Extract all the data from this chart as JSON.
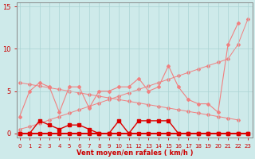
{
  "x": [
    0,
    1,
    2,
    3,
    4,
    5,
    6,
    7,
    8,
    9,
    10,
    11,
    12,
    13,
    14,
    15,
    16,
    17,
    18,
    19,
    20,
    21,
    22,
    23
  ],
  "series": {
    "diagonal_up": [
      0.5,
      0.8,
      1.2,
      1.6,
      2.0,
      2.4,
      2.8,
      3.2,
      3.6,
      4.0,
      4.4,
      4.8,
      5.2,
      5.6,
      6.0,
      6.4,
      6.8,
      7.2,
      7.6,
      8.0,
      8.4,
      8.8,
      10.5,
      13.5
    ],
    "diagonal_down": [
      6.0,
      5.8,
      5.6,
      5.4,
      5.2,
      5.0,
      4.8,
      4.6,
      4.4,
      4.2,
      4.0,
      3.8,
      3.6,
      3.4,
      3.2,
      3.0,
      2.8,
      2.6,
      2.4,
      2.2,
      2.0,
      1.8,
      1.6,
      null
    ],
    "jagged_light": [
      2.0,
      5.0,
      6.0,
      5.5,
      2.5,
      5.5,
      5.5,
      3.0,
      5.0,
      5.0,
      5.5,
      5.5,
      6.5,
      5.0,
      5.5,
      8.0,
      5.5,
      4.0,
      3.5,
      3.5,
      2.5,
      10.5,
      13.0,
      null
    ],
    "dark_upper": [
      0.0,
      0.0,
      1.5,
      1.0,
      0.5,
      1.0,
      1.0,
      0.5,
      0.0,
      0.0,
      1.5,
      0.0,
      1.5,
      1.5,
      1.5,
      1.5,
      0.0,
      0.0,
      0.0,
      0.0,
      0.0,
      0.0,
      0.0,
      0.0
    ],
    "dark_flat": [
      0.0,
      0.0,
      0.0,
      0.0,
      0.0,
      0.0,
      0.0,
      0.0,
      0.0,
      0.0,
      0.0,
      0.0,
      0.0,
      0.0,
      0.0,
      0.0,
      0.0,
      0.0,
      0.0,
      0.0,
      0.0,
      0.0,
      0.0,
      0.0
    ]
  },
  "xlabel": "Vent moyen/en rafales ( km/h )",
  "yticks": [
    0,
    5,
    10,
    15
  ],
  "xticks": [
    0,
    1,
    2,
    3,
    4,
    5,
    6,
    7,
    8,
    9,
    10,
    11,
    12,
    13,
    14,
    15,
    16,
    17,
    18,
    19,
    20,
    21,
    22,
    23
  ],
  "ylim": [
    -0.5,
    15.5
  ],
  "xlim": [
    -0.3,
    23.5
  ],
  "bg_color": "#ceeaea",
  "grid_color": "#aad4d4",
  "line_color_light": "#f08080",
  "line_color_dark": "#dd0000",
  "xlabel_color": "#cc0000",
  "tick_color": "#cc0000"
}
